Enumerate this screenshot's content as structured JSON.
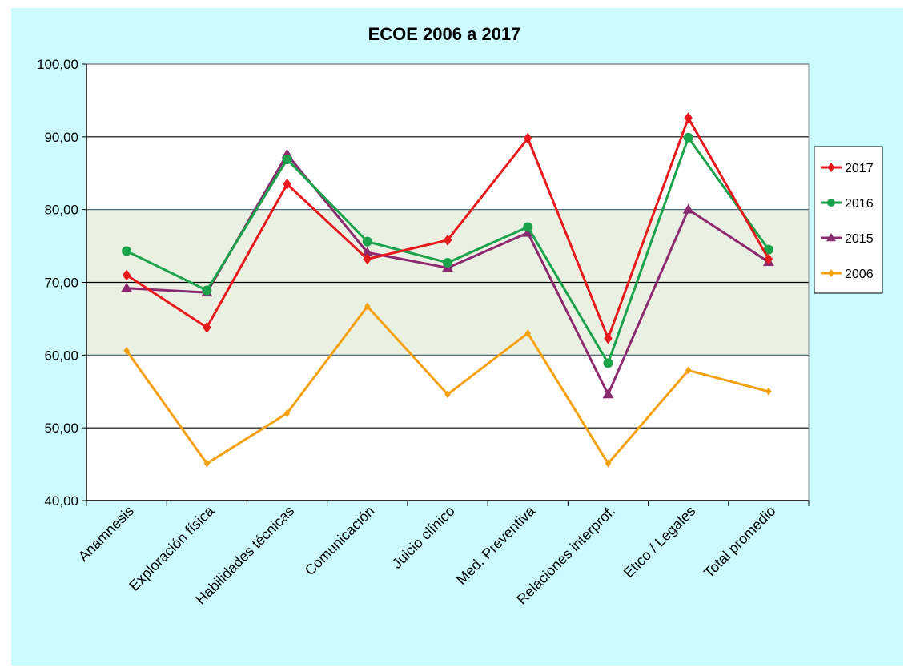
{
  "chart_data": {
    "type": "line",
    "title": "ECOE 2006 a 2017",
    "xlabel": "",
    "ylabel": "",
    "ylim": [
      40,
      100
    ],
    "yticks": [
      "40,00",
      "50,00",
      "60,00",
      "70,00",
      "80,00",
      "90,00",
      "100,00"
    ],
    "categories": [
      "Anamnesis",
      "Exploración física",
      "Habilidades técnicas",
      "Comunicación",
      "Juicio clínico",
      "Med. Preventiva",
      "Relaciones interprof.",
      "Ético / Legales",
      "Total promedio"
    ],
    "band": [
      60,
      80
    ],
    "grid": true,
    "legend": "right",
    "series": [
      {
        "name": "2017",
        "color": "#e8191c",
        "marker": "diamond",
        "values": [
          71.0,
          63.8,
          83.5,
          73.2,
          75.8,
          89.8,
          62.3,
          92.6,
          73.2
        ]
      },
      {
        "name": "2016",
        "color": "#1aa34a",
        "marker": "circle",
        "values": [
          74.3,
          68.9,
          86.9,
          75.6,
          72.7,
          77.6,
          58.9,
          89.9,
          74.5
        ]
      },
      {
        "name": "2015",
        "color": "#8b2a6e",
        "marker": "triangle",
        "values": [
          69.2,
          68.6,
          87.6,
          74.1,
          72.0,
          76.8,
          54.6,
          80.0,
          72.8
        ]
      },
      {
        "name": "2006",
        "color": "#f5a10f",
        "marker": "diamond",
        "values": [
          60.6,
          45.1,
          52.0,
          66.7,
          54.6,
          63.0,
          45.1,
          57.9,
          55.0
        ]
      }
    ]
  },
  "colors": {
    "outer_background": "#ccfbff",
    "plot_background": "#ffffff",
    "band_fill": "#eaf0e2",
    "axis": "#000000"
  }
}
